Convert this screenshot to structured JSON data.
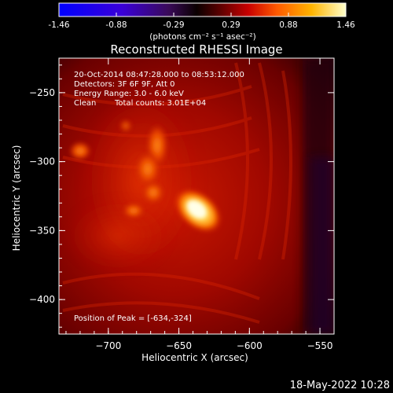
{
  "colorbar": {
    "ticks": [
      "-1.46",
      "-0.88",
      "-0.29",
      "0.29",
      "0.88",
      "1.46"
    ],
    "units": "(photons cm⁻² s⁻¹ asec⁻²)"
  },
  "title": "Reconstructed RHESSI Image",
  "annotations": {
    "line1": "20-Oct-2014 08:47:28.000 to 08:53:12.000",
    "line2": "Detectors: 3F 6F 9F, Att 0",
    "line3": "Energy Range: 3.0 - 6.0 keV",
    "line4_a": "Clean",
    "line4_b": "Total counts: 3.01E+04",
    "peak": "Position of Peak = [-634,-324]"
  },
  "axes": {
    "xlabel": "Heliocentric X (arcsec)",
    "ylabel": "Heliocentric Y (arcsec)",
    "xticks": [
      {
        "value": -700,
        "label": "−700"
      },
      {
        "value": -650,
        "label": "−650"
      },
      {
        "value": -600,
        "label": "−600"
      },
      {
        "value": -550,
        "label": "−550"
      }
    ],
    "yticks": [
      {
        "value": -250,
        "label": "−250"
      },
      {
        "value": -300,
        "label": "−300"
      },
      {
        "value": -350,
        "label": "−350"
      },
      {
        "value": -400,
        "label": "−400"
      }
    ],
    "xlim": [
      -735,
      -540
    ],
    "ylim": [
      -425,
      -225
    ]
  },
  "timestamp": "18-May-2022 10:28"
}
